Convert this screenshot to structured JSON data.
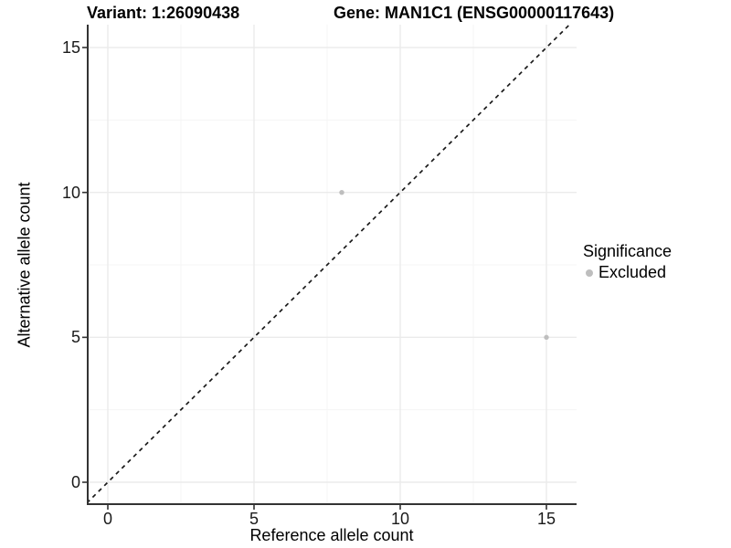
{
  "chart_data": {
    "type": "scatter",
    "titles": {
      "left": "Variant: 1:26090438",
      "right": "Gene: MAN1C1 (ENSG00000117643)"
    },
    "xlabel": "Reference allele count",
    "ylabel": "Alternative allele count",
    "x_ticks": [
      0,
      5,
      10,
      15
    ],
    "y_ticks": [
      0,
      5,
      10,
      15
    ],
    "x_minor_ticks": [
      2.5,
      7.5,
      12.5
    ],
    "y_minor_ticks": [
      2.5,
      7.5,
      12.5
    ],
    "xlim": [
      -0.75,
      15.75
    ],
    "ylim": [
      -0.75,
      15.75
    ],
    "grid": {
      "visible": true,
      "major_color": "#ebebeb",
      "minor_color": "#f5f5f5"
    },
    "axis_color": "#333333",
    "reference_line": {
      "type": "identity y=x",
      "style": "dashed",
      "color": "#1a1a1a"
    },
    "series": [
      {
        "name": "Excluded",
        "color": "#bebebe",
        "points": [
          {
            "x": 8,
            "y": 10
          },
          {
            "x": 15,
            "y": 5
          }
        ]
      }
    ],
    "legend": {
      "title": "Significance",
      "position": "right",
      "items": [
        {
          "label": "Excluded",
          "color": "#bebebe"
        }
      ]
    }
  }
}
